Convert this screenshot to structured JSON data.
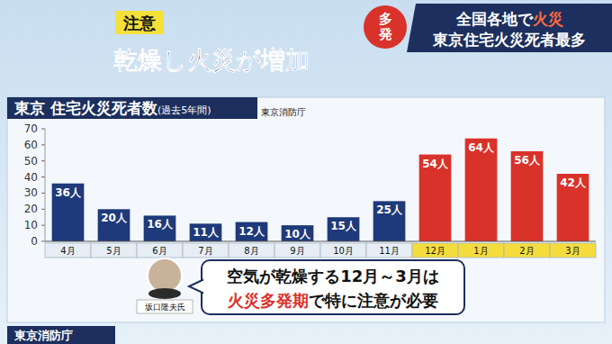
{
  "header": {
    "badge": "注意",
    "headline": "乾燥し火災が増加",
    "corner": "多発",
    "banner_line1": {
      "text": "全国各地で",
      "highlight": "火災"
    },
    "banner_line2": "東京住宅火災死者最多"
  },
  "chart_data": {
    "type": "bar",
    "title": "東京 住宅火災死者数",
    "subtitle": "(過去5年間)",
    "source": "東京消防庁",
    "categories": [
      "4月",
      "5月",
      "6月",
      "7月",
      "8月",
      "9月",
      "10月",
      "11月",
      "12月",
      "1月",
      "2月",
      "3月"
    ],
    "values": [
      36,
      20,
      16,
      11,
      12,
      10,
      15,
      25,
      54,
      64,
      56,
      42
    ],
    "value_labels": [
      "36人",
      "20人",
      "16人",
      "11人",
      "12人",
      "10人",
      "15人",
      "25人",
      "54人",
      "64人",
      "56人",
      "42人"
    ],
    "colors": [
      "#1f3a7a",
      "#1f3a7a",
      "#1f3a7a",
      "#1f3a7a",
      "#1f3a7a",
      "#1f3a7a",
      "#1f3a7a",
      "#1f3a7a",
      "#d9322b",
      "#d9322b",
      "#d9322b",
      "#d9322b"
    ],
    "ylim": [
      0,
      70
    ],
    "yticks": [
      0,
      10,
      20,
      30,
      40,
      50,
      60,
      70
    ],
    "grid": false,
    "data_labels": true
  },
  "callout": {
    "line1": "空気が乾燥する12月～3月は",
    "line2_highlight": "火災多発期",
    "line2_rest": "で特に注意が必要",
    "speaker": "坂口隆夫氏"
  },
  "footer": {
    "label": "東京消防庁"
  }
}
